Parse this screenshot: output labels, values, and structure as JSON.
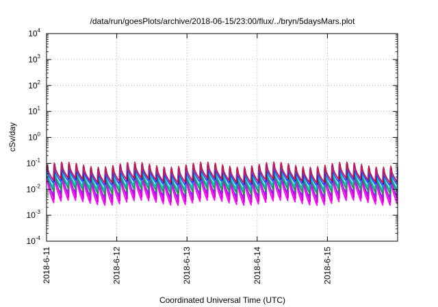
{
  "chart_data": {
    "type": "line",
    "title": "/data/run/goesPlots/archive/2018-06-15/23:00/flux/../bryn/5daysMars.plot",
    "xlabel": "Coordinated Universal Time (UTC)",
    "ylabel": "cSv/day",
    "yscale": "log",
    "ylim": [
      0.0001,
      10000
    ],
    "xlim": [
      "2018-06-11T00:00",
      "2018-06-16T00:00"
    ],
    "grid": true,
    "y_ticks": [
      {
        "base": "10",
        "exp": "-4",
        "value": 0.0001
      },
      {
        "base": "10",
        "exp": "-3",
        "value": 0.001
      },
      {
        "base": "10",
        "exp": "-2",
        "value": 0.01
      },
      {
        "base": "10",
        "exp": "-1",
        "value": 0.1
      },
      {
        "base": "10",
        "exp": "0",
        "value": 1
      },
      {
        "base": "10",
        "exp": "1",
        "value": 10
      },
      {
        "base": "10",
        "exp": "2",
        "value": 100
      },
      {
        "base": "10",
        "exp": "3",
        "value": 1000
      },
      {
        "base": "10",
        "exp": "4",
        "value": 10000
      }
    ],
    "x_ticks": [
      {
        "label": "2018-6-11",
        "value": "2018-06-11"
      },
      {
        "label": "2018-6-12",
        "value": "2018-06-12"
      },
      {
        "label": "2018-6-13",
        "value": "2018-06-13"
      },
      {
        "label": "2018-6-14",
        "value": "2018-06-14"
      },
      {
        "label": "2018-6-15",
        "value": "2018-06-15"
      }
    ],
    "series_style": {
      "pattern": "sawtooth",
      "cycles": 48,
      "cycle_hours": 2.5,
      "envelope_period_hours": 24,
      "envelope_amplitude_decades": 0.1,
      "phase_offset_cycles": 0.06
    },
    "series": [
      {
        "color": "#ff00ff",
        "peak": 0.045,
        "trough": 0.0035
      },
      {
        "color": "#ff00ff",
        "peak": 0.04,
        "trough": 0.003
      },
      {
        "color": "#d400d4",
        "peak": 0.05,
        "trough": 0.004
      },
      {
        "color": "#8a2be2",
        "peak": 0.06,
        "trough": 0.006
      },
      {
        "color": "#00aaaa",
        "peak": 0.05,
        "trough": 0.009
      },
      {
        "color": "#2e8b57",
        "peak": 0.045,
        "trough": 0.008
      },
      {
        "color": "#00c0c0",
        "peak": 0.065,
        "trough": 0.012
      },
      {
        "color": "#1e90ff",
        "peak": 0.07,
        "trough": 0.016
      },
      {
        "color": "#0000cd",
        "peak": 0.08,
        "trough": 0.02
      },
      {
        "color": "#3050ff",
        "peak": 0.075,
        "trough": 0.018
      },
      {
        "color": "#dc143c",
        "peak": 0.09,
        "trough": 0.022
      }
    ]
  }
}
